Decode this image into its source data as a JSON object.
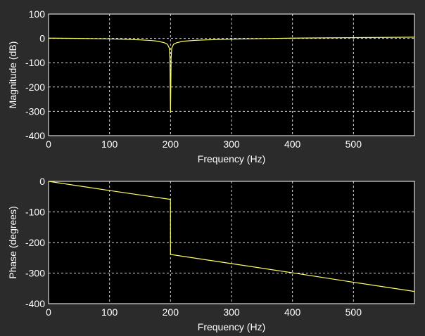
{
  "chart_data": [
    {
      "type": "line",
      "title": "",
      "xlabel": "Frequency (Hz)",
      "ylabel": "Magnitude (dB)",
      "xlim": [
        0,
        600
      ],
      "ylim": [
        -400,
        100
      ],
      "xticks": [
        0,
        100,
        200,
        300,
        400,
        500
      ],
      "yticks": [
        100,
        0,
        -100,
        -200,
        -300,
        -400
      ],
      "grid": true,
      "legend": "none",
      "series": [
        {
          "color": "#ffff66",
          "x": [
            0,
            50,
            100,
            130,
            150,
            170,
            180,
            190,
            195,
            198,
            199,
            199.5,
            200,
            200.5,
            201,
            202,
            205,
            210,
            220,
            240,
            260,
            300,
            350,
            400,
            450,
            500,
            550,
            600
          ],
          "y": [
            1,
            0,
            -2,
            -4,
            -6,
            -9,
            -12,
            -18,
            -24,
            -40,
            -80,
            -190,
            -305,
            -190,
            -80,
            -40,
            -24,
            -18,
            -12,
            -8,
            -6,
            -3,
            -1,
            1,
            2,
            3,
            4,
            5
          ]
        }
      ]
    },
    {
      "type": "line",
      "title": "",
      "xlabel": "Frequency (Hz)",
      "ylabel": "Phase (degrees)",
      "xlim": [
        0,
        600
      ],
      "ylim": [
        -400,
        0
      ],
      "xticks": [
        0,
        100,
        200,
        300,
        400,
        500
      ],
      "yticks": [
        0,
        -100,
        -200,
        -300,
        -400
      ],
      "grid": true,
      "legend": "none",
      "series": [
        {
          "color": "#ffff66",
          "x": [
            0,
            100,
            199.9,
            200,
            300,
            400,
            500,
            600
          ],
          "y": [
            0,
            -30,
            -59,
            -239,
            -269,
            -299,
            -330,
            -360
          ]
        }
      ]
    }
  ]
}
